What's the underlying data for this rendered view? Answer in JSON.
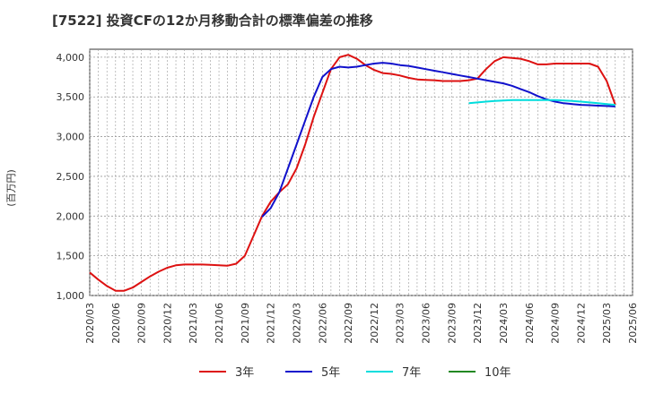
{
  "chart_data": {
    "type": "line",
    "title": "[7522]  投資CFの12か月移動合計の標準偏差の推移",
    "ylabel": "(百万円)",
    "xlabel": "",
    "ylim": [
      1000,
      4100
    ],
    "yticks": [
      1000,
      1500,
      2000,
      2500,
      3000,
      3500,
      4000
    ],
    "ytick_labels": [
      "1,000",
      "1,500",
      "2,000",
      "2,500",
      "3,000",
      "3,500",
      "4,000"
    ],
    "xticks": [
      "2020/03",
      "2020/06",
      "2020/09",
      "2020/12",
      "2021/03",
      "2021/06",
      "2021/09",
      "2021/12",
      "2022/03",
      "2022/06",
      "2022/09",
      "2022/12",
      "2023/03",
      "2023/06",
      "2023/09",
      "2023/12",
      "2024/03",
      "2024/06",
      "2024/09",
      "2024/12",
      "2025/03",
      "2025/06"
    ],
    "grid": true,
    "legend_position": "bottom",
    "x_start": "2020/03",
    "series": [
      {
        "name": "3年",
        "color": "#dd1111",
        "start_index": 0,
        "values": [
          1290,
          1200,
          1120,
          1060,
          1060,
          1100,
          1170,
          1240,
          1300,
          1350,
          1380,
          1390,
          1390,
          1390,
          1385,
          1380,
          1375,
          1400,
          1500,
          1750,
          2000,
          2180,
          2300,
          2400,
          2600,
          2900,
          3250,
          3550,
          3850,
          4000,
          4030,
          3980,
          3900,
          3840,
          3800,
          3790,
          3770,
          3740,
          3720,
          3715,
          3710,
          3700,
          3700,
          3700,
          3710,
          3730,
          3850,
          3950,
          4000,
          3990,
          3980,
          3950,
          3910,
          3910,
          3920,
          3920,
          3920,
          3920,
          3920,
          3880,
          3700,
          3400
        ]
      },
      {
        "name": "5年",
        "color": "#1111cc",
        "start_index": 20,
        "values": [
          1990,
          2100,
          2300,
          2600,
          2900,
          3200,
          3500,
          3750,
          3850,
          3880,
          3870,
          3880,
          3900,
          3920,
          3930,
          3920,
          3900,
          3890,
          3870,
          3850,
          3830,
          3810,
          3790,
          3770,
          3750,
          3730,
          3710,
          3690,
          3670,
          3640,
          3600,
          3560,
          3510,
          3470,
          3440,
          3420,
          3410,
          3400,
          3395,
          3390,
          3385,
          3380
        ]
      },
      {
        "name": "7年",
        "color": "#00dddd",
        "start_index": 44,
        "values": [
          3420,
          3430,
          3440,
          3450,
          3455,
          3460,
          3460,
          3460,
          3460,
          3460,
          3460,
          3455,
          3450,
          3440,
          3430,
          3420,
          3410,
          3400
        ]
      },
      {
        "name": "10年",
        "color": "#228822",
        "start_index": 0,
        "values": []
      }
    ]
  }
}
